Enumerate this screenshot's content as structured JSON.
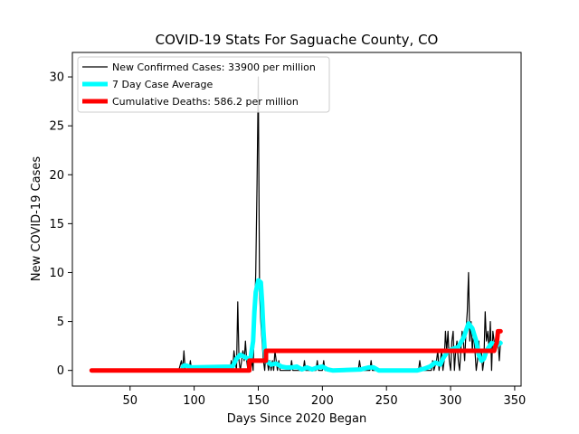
{
  "chart_data": {
    "type": "line",
    "title": "COVID-19 Stats For Saguache County, CO",
    "xlabel": "Days Since 2020 Began",
    "ylabel": "New COVID-19 Cases",
    "xlim": [
      5,
      355
    ],
    "ylim": [
      -1.6,
      32.5
    ],
    "xticks": [
      50,
      100,
      150,
      200,
      250,
      300,
      350
    ],
    "yticks": [
      0,
      5,
      10,
      15,
      20,
      25,
      30
    ],
    "grid": false,
    "legend_position": "top-left",
    "series": [
      {
        "name": "New Confirmed Cases: 33900 per million",
        "color": "#000000",
        "points": [
          [
            88,
            0
          ],
          [
            90,
            1
          ],
          [
            91,
            0
          ],
          [
            92,
            2
          ],
          [
            93,
            0
          ],
          [
            96,
            0
          ],
          [
            97,
            1
          ],
          [
            98,
            0
          ],
          [
            128,
            0
          ],
          [
            129,
            1
          ],
          [
            130,
            0
          ],
          [
            131,
            2
          ],
          [
            132,
            1
          ],
          [
            133,
            0
          ],
          [
            134,
            7
          ],
          [
            135,
            1
          ],
          [
            136,
            0
          ],
          [
            137,
            1
          ],
          [
            138,
            2
          ],
          [
            139,
            1
          ],
          [
            140,
            3
          ],
          [
            141,
            1
          ],
          [
            142,
            0
          ],
          [
            143,
            1
          ],
          [
            144,
            0
          ],
          [
            145,
            1
          ],
          [
            146,
            0
          ],
          [
            147,
            5
          ],
          [
            148,
            10
          ],
          [
            149,
            19
          ],
          [
            150,
            30
          ],
          [
            151,
            8
          ],
          [
            152,
            5
          ],
          [
            153,
            3
          ],
          [
            154,
            1
          ],
          [
            155,
            0
          ],
          [
            156,
            2
          ],
          [
            157,
            1
          ],
          [
            158,
            0
          ],
          [
            159,
            1
          ],
          [
            160,
            0
          ],
          [
            161,
            1
          ],
          [
            162,
            0
          ],
          [
            163,
            2
          ],
          [
            164,
            1
          ],
          [
            165,
            0
          ],
          [
            166,
            1
          ],
          [
            167,
            0
          ],
          [
            175,
            0
          ],
          [
            176,
            1
          ],
          [
            177,
            0
          ],
          [
            185,
            0
          ],
          [
            186,
            1
          ],
          [
            187,
            0
          ],
          [
            195,
            0
          ],
          [
            196,
            1
          ],
          [
            197,
            0
          ],
          [
            200,
            0
          ],
          [
            201,
            1
          ],
          [
            202,
            0
          ],
          [
            228,
            0
          ],
          [
            229,
            1
          ],
          [
            230,
            0
          ],
          [
            237,
            0
          ],
          [
            238,
            1
          ],
          [
            239,
            0
          ],
          [
            275,
            0
          ],
          [
            276,
            1
          ],
          [
            277,
            0
          ],
          [
            285,
            0
          ],
          [
            286,
            1
          ],
          [
            287,
            0
          ],
          [
            289,
            1
          ],
          [
            290,
            2
          ],
          [
            291,
            0
          ],
          [
            292,
            1
          ],
          [
            293,
            2
          ],
          [
            294,
            0
          ],
          [
            295,
            1
          ],
          [
            296,
            4
          ],
          [
            297,
            2
          ],
          [
            298,
            4
          ],
          [
            299,
            1
          ],
          [
            300,
            0
          ],
          [
            301,
            3
          ],
          [
            302,
            4
          ],
          [
            303,
            0
          ],
          [
            304,
            2
          ],
          [
            305,
            3
          ],
          [
            306,
            1
          ],
          [
            307,
            0
          ],
          [
            308,
            2
          ],
          [
            309,
            4
          ],
          [
            310,
            3
          ],
          [
            311,
            1
          ],
          [
            312,
            4
          ],
          [
            313,
            6
          ],
          [
            314,
            10
          ],
          [
            315,
            3
          ],
          [
            316,
            5
          ],
          [
            317,
            2
          ],
          [
            318,
            4
          ],
          [
            319,
            2
          ],
          [
            320,
            0
          ],
          [
            321,
            1
          ],
          [
            322,
            3
          ],
          [
            323,
            1
          ],
          [
            324,
            2
          ],
          [
            325,
            0
          ],
          [
            326,
            1
          ],
          [
            327,
            6
          ],
          [
            328,
            3
          ],
          [
            329,
            4
          ],
          [
            330,
            2
          ],
          [
            331,
            5
          ],
          [
            332,
            0
          ],
          [
            333,
            4
          ],
          [
            334,
            3
          ],
          [
            335,
            2
          ],
          [
            336,
            4
          ],
          [
            337,
            3
          ],
          [
            338,
            1
          ],
          [
            339,
            3
          ]
        ]
      },
      {
        "name": "7 Day Case Average",
        "color": "#00ffff",
        "points": [
          [
            91,
            0.3
          ],
          [
            92,
            0.5
          ],
          [
            94,
            0.5
          ],
          [
            96,
            0.4
          ],
          [
            98,
            0.3
          ],
          [
            130,
            0.4
          ],
          [
            133,
            1.2
          ],
          [
            136,
            1.6
          ],
          [
            139,
            1.4
          ],
          [
            142,
            1.2
          ],
          [
            144,
            1.3
          ],
          [
            146,
            3
          ],
          [
            147,
            6
          ],
          [
            148,
            8
          ],
          [
            150,
            9.2
          ],
          [
            152,
            9
          ],
          [
            153,
            7
          ],
          [
            154,
            4
          ],
          [
            155,
            2
          ],
          [
            156,
            1
          ],
          [
            158,
            0.8
          ],
          [
            160,
            0.6
          ],
          [
            164,
            0.7
          ],
          [
            168,
            0.4
          ],
          [
            172,
            0.3
          ],
          [
            176,
            0.3
          ],
          [
            180,
            0.4
          ],
          [
            184,
            0.1
          ],
          [
            188,
            0.3
          ],
          [
            192,
            0.1
          ],
          [
            196,
            0.3
          ],
          [
            200,
            0.4
          ],
          [
            204,
            0.1
          ],
          [
            208,
            0
          ],
          [
            230,
            0.1
          ],
          [
            236,
            0.3
          ],
          [
            240,
            0.3
          ],
          [
            244,
            0
          ],
          [
            274,
            0
          ],
          [
            280,
            0.2
          ],
          [
            284,
            0.4
          ],
          [
            288,
            0.8
          ],
          [
            292,
            0.6
          ],
          [
            294,
            1.2
          ],
          [
            298,
            2
          ],
          [
            302,
            2.2
          ],
          [
            306,
            2.4
          ],
          [
            310,
            3.3
          ],
          [
            314,
            4.8
          ],
          [
            317,
            4.3
          ],
          [
            320,
            3
          ],
          [
            322,
            1.6
          ],
          [
            324,
            1
          ],
          [
            326,
            1.2
          ],
          [
            328,
            2
          ],
          [
            332,
            2.8
          ],
          [
            336,
            2.6
          ],
          [
            339,
            2.8
          ]
        ]
      },
      {
        "name": "Cumulative Deaths: 586.2 per million",
        "color": "#ff0000",
        "points": [
          [
            20,
            0
          ],
          [
            143,
            0
          ],
          [
            143,
            1
          ],
          [
            155,
            1
          ],
          [
            156,
            1
          ],
          [
            156,
            2
          ],
          [
            333,
            2
          ],
          [
            334,
            2
          ],
          [
            335,
            2.5
          ],
          [
            336,
            2.8
          ],
          [
            337,
            4
          ],
          [
            339,
            4
          ]
        ]
      }
    ]
  }
}
